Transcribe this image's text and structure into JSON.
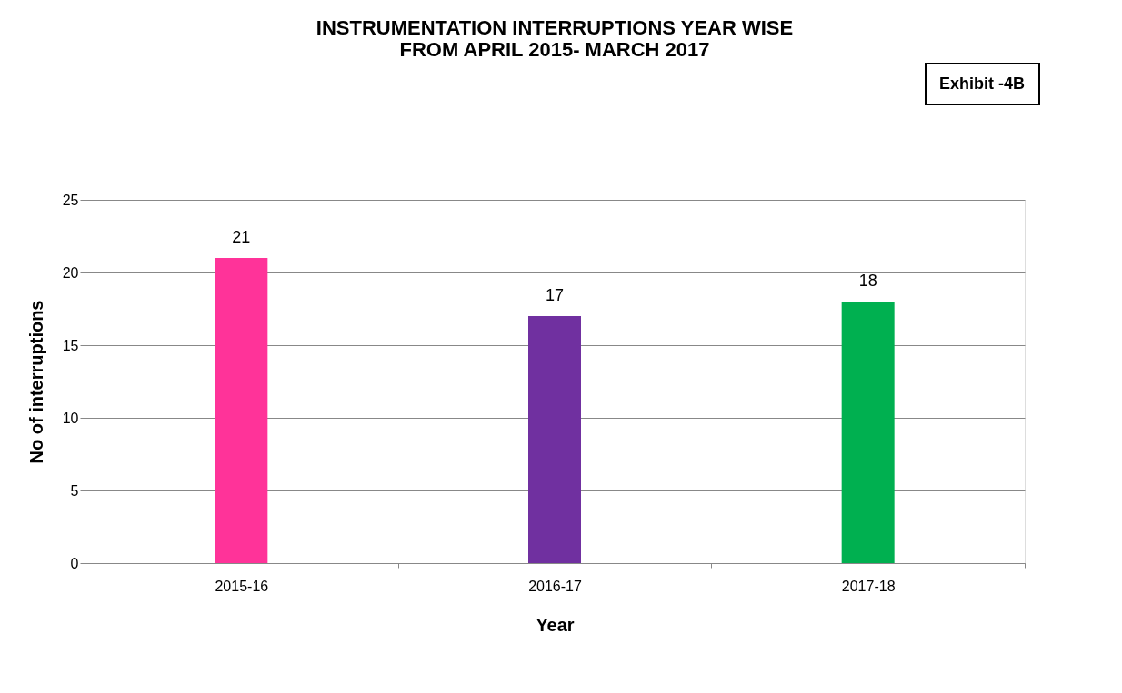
{
  "chart_data": {
    "type": "bar",
    "title": [
      "INSTRUMENTATION INTERRUPTIONS YEAR WISE",
      "FROM APRIL 2015- MARCH 2017"
    ],
    "categories": [
      "2015-16",
      "2016-17",
      "2017-18"
    ],
    "values": [
      21,
      17,
      18
    ],
    "colors": [
      "#ff3399",
      "#7030a0",
      "#00b050"
    ],
    "xlabel": "Year",
    "ylabel": "No of interruptions",
    "ylim": [
      0,
      25
    ],
    "yticks": [
      0,
      5,
      10,
      15,
      20,
      25
    ],
    "grid": "y",
    "data_labels": true,
    "annotations": [
      "Exhibit -4B"
    ]
  }
}
